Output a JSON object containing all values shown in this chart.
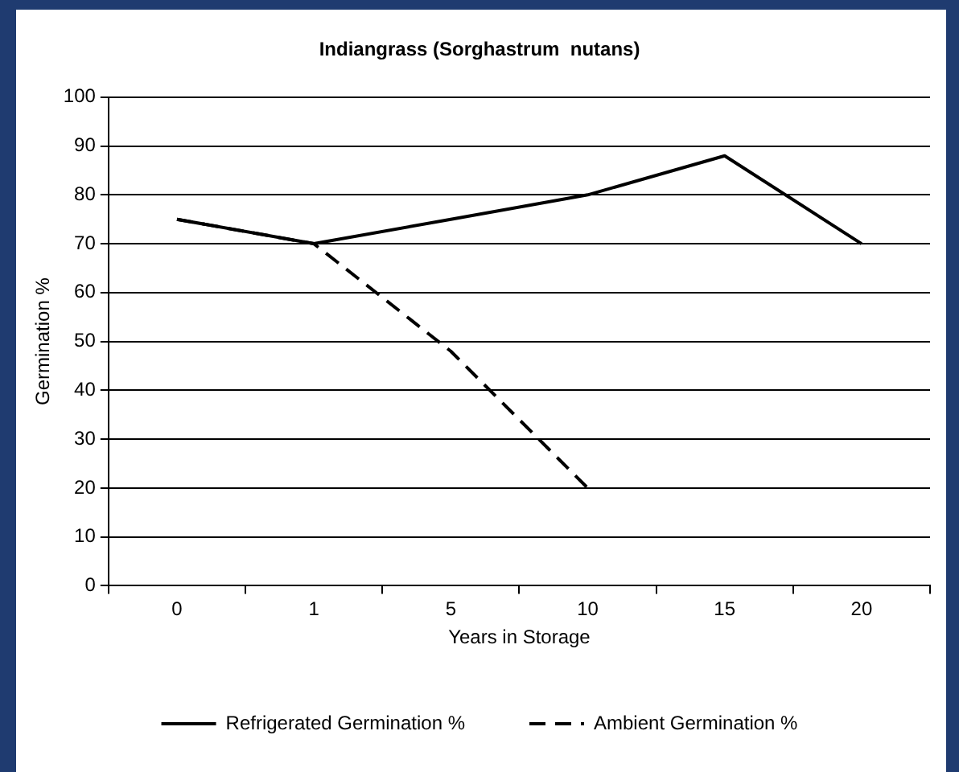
{
  "chart_data": {
    "type": "line",
    "title": "Indiangrass (Sorghastrum  nutans)",
    "xlabel": "Years in Storage",
    "ylabel": "Germination %",
    "categories": [
      "0",
      "1",
      "5",
      "10",
      "15",
      "20"
    ],
    "series": [
      {
        "name": "Refrigerated Germination %",
        "color": "#000000",
        "values": [
          75,
          70,
          75,
          80,
          88,
          70
        ],
        "line_style": "solid"
      },
      {
        "name": "Ambient Germination %",
        "color": "#000000",
        "values": [
          75,
          70,
          48,
          20,
          null,
          null
        ],
        "line_style": "dashed"
      }
    ],
    "ylim": [
      0,
      100
    ],
    "yticks": [
      0,
      10,
      20,
      30,
      40,
      50,
      60,
      70,
      80,
      90,
      100
    ],
    "grid": "y",
    "legend": "bottom",
    "marker": "none"
  }
}
